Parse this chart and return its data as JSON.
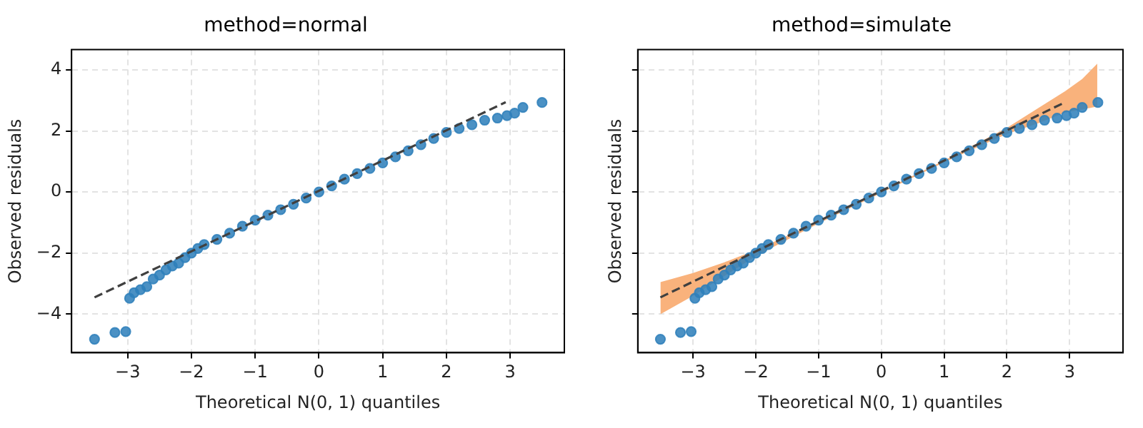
{
  "chart_data": [
    {
      "type": "scatter",
      "title": "method=normal",
      "xlabel": "Theoretical N(0, 1) quantiles",
      "ylabel": "Observed residuals",
      "xlim": [
        -3.88,
        3.85
      ],
      "ylim": [
        -5.26,
        4.66
      ],
      "xticks": [
        {
          "value": -3,
          "label": "−3"
        },
        {
          "value": -2,
          "label": "−2"
        },
        {
          "value": -1,
          "label": "−1"
        },
        0,
        1,
        2,
        3
      ],
      "yticks": [
        {
          "value": -4,
          "label": "−4"
        },
        {
          "value": -2,
          "label": "−2"
        },
        0,
        2,
        4
      ],
      "grid": true,
      "legend": false,
      "series": [
        {
          "type": "scatter",
          "color": "#2f80bb",
          "marker": "circle",
          "x": [
            -3.52,
            -3.2,
            -3.03,
            -2.97,
            -2.9,
            -2.8,
            -2.7,
            -2.6,
            -2.5,
            -2.4,
            -2.3,
            -2.2,
            -2.1,
            -2.0,
            -1.9,
            -1.8,
            -1.6,
            -1.4,
            -1.2,
            -1.0,
            -0.8,
            -0.6,
            -0.4,
            -0.2,
            0,
            0.2,
            0.4,
            0.6,
            0.8,
            1.0,
            1.2,
            1.4,
            1.6,
            1.8,
            2.0,
            2.2,
            2.4,
            2.6,
            2.8,
            2.95,
            3.07,
            3.2,
            3.5
          ],
          "values": [
            -4.82,
            -4.6,
            -4.57,
            -3.48,
            -3.3,
            -3.2,
            -3.1,
            -2.85,
            -2.72,
            -2.55,
            -2.42,
            -2.33,
            -2.15,
            -2.0,
            -1.85,
            -1.72,
            -1.55,
            -1.35,
            -1.12,
            -0.92,
            -0.76,
            -0.58,
            -0.4,
            -0.2,
            0,
            0.2,
            0.42,
            0.6,
            0.77,
            0.95,
            1.15,
            1.35,
            1.55,
            1.75,
            1.95,
            2.08,
            2.2,
            2.35,
            2.42,
            2.5,
            2.58,
            2.77,
            2.93
          ]
        },
        {
          "type": "line",
          "color": "#404040",
          "line_style": "dashed",
          "marker": "none",
          "x": [
            -3.52,
            2.93
          ],
          "values": [
            -3.45,
            2.94
          ]
        }
      ]
    },
    {
      "type": "scatter",
      "title": "method=simulate",
      "xlabel": "Theoretical N(0, 1) quantiles",
      "ylabel": "Observed residuals",
      "xlim": [
        -3.88,
        3.85
      ],
      "ylim": [
        -5.26,
        4.66
      ],
      "xticks": [
        {
          "value": -3,
          "label": "−3"
        },
        {
          "value": -2,
          "label": "−2"
        },
        {
          "value": -1,
          "label": "−1"
        },
        0,
        1,
        2,
        3
      ],
      "yticks": [
        -4,
        -2,
        0,
        2,
        4
      ],
      "tick_labels": "x",
      "grid": true,
      "legend": false,
      "series": [
        {
          "type": "scatter",
          "color": "#2f80bb",
          "marker": "circle",
          "x": [
            -3.52,
            -3.2,
            -3.03,
            -2.97,
            -2.9,
            -2.8,
            -2.7,
            -2.6,
            -2.5,
            -2.4,
            -2.3,
            -2.2,
            -2.1,
            -2.0,
            -1.9,
            -1.8,
            -1.6,
            -1.4,
            -1.2,
            -1.0,
            -0.8,
            -0.6,
            -0.4,
            -0.2,
            0,
            0.2,
            0.4,
            0.6,
            0.8,
            1.0,
            1.2,
            1.4,
            1.6,
            1.8,
            2.0,
            2.2,
            2.4,
            2.6,
            2.8,
            2.95,
            3.07,
            3.2,
            3.45
          ],
          "values": [
            -4.82,
            -4.6,
            -4.57,
            -3.48,
            -3.3,
            -3.2,
            -3.1,
            -2.85,
            -2.72,
            -2.55,
            -2.42,
            -2.33,
            -2.15,
            -2.0,
            -1.85,
            -1.72,
            -1.55,
            -1.35,
            -1.12,
            -0.92,
            -0.76,
            -0.58,
            -0.4,
            -0.2,
            0,
            0.2,
            0.42,
            0.6,
            0.77,
            0.95,
            1.15,
            1.35,
            1.55,
            1.75,
            1.95,
            2.08,
            2.2,
            2.35,
            2.42,
            2.5,
            2.58,
            2.77,
            2.93
          ]
        },
        {
          "type": "line",
          "color": "#404040",
          "line_style": "dashed",
          "marker": "none",
          "x": [
            -3.52,
            2.93
          ],
          "values": [
            -3.45,
            2.94
          ]
        },
        {
          "type": "line",
          "color": "#f9b27c",
          "marker": "none",
          "x": [
            -3.52,
            -3.0,
            -2.5,
            -2.0,
            -1.0,
            0,
            1,
            2,
            2.5,
            2.93,
            3.2,
            3.44
          ],
          "values": [
            null,
            null,
            null,
            null,
            null,
            null,
            null,
            null,
            null,
            null,
            null,
            null
          ],
          "lower": [
            -4.0,
            -3.4,
            -2.75,
            -2.1,
            -1.03,
            -0.03,
            0.97,
            1.9,
            2.25,
            2.6,
            2.7,
            2.8
          ],
          "upper": [
            -2.95,
            -2.65,
            -2.3,
            -1.9,
            -0.97,
            0.03,
            1.03,
            2.1,
            2.75,
            3.3,
            3.7,
            4.2
          ]
        }
      ]
    }
  ]
}
